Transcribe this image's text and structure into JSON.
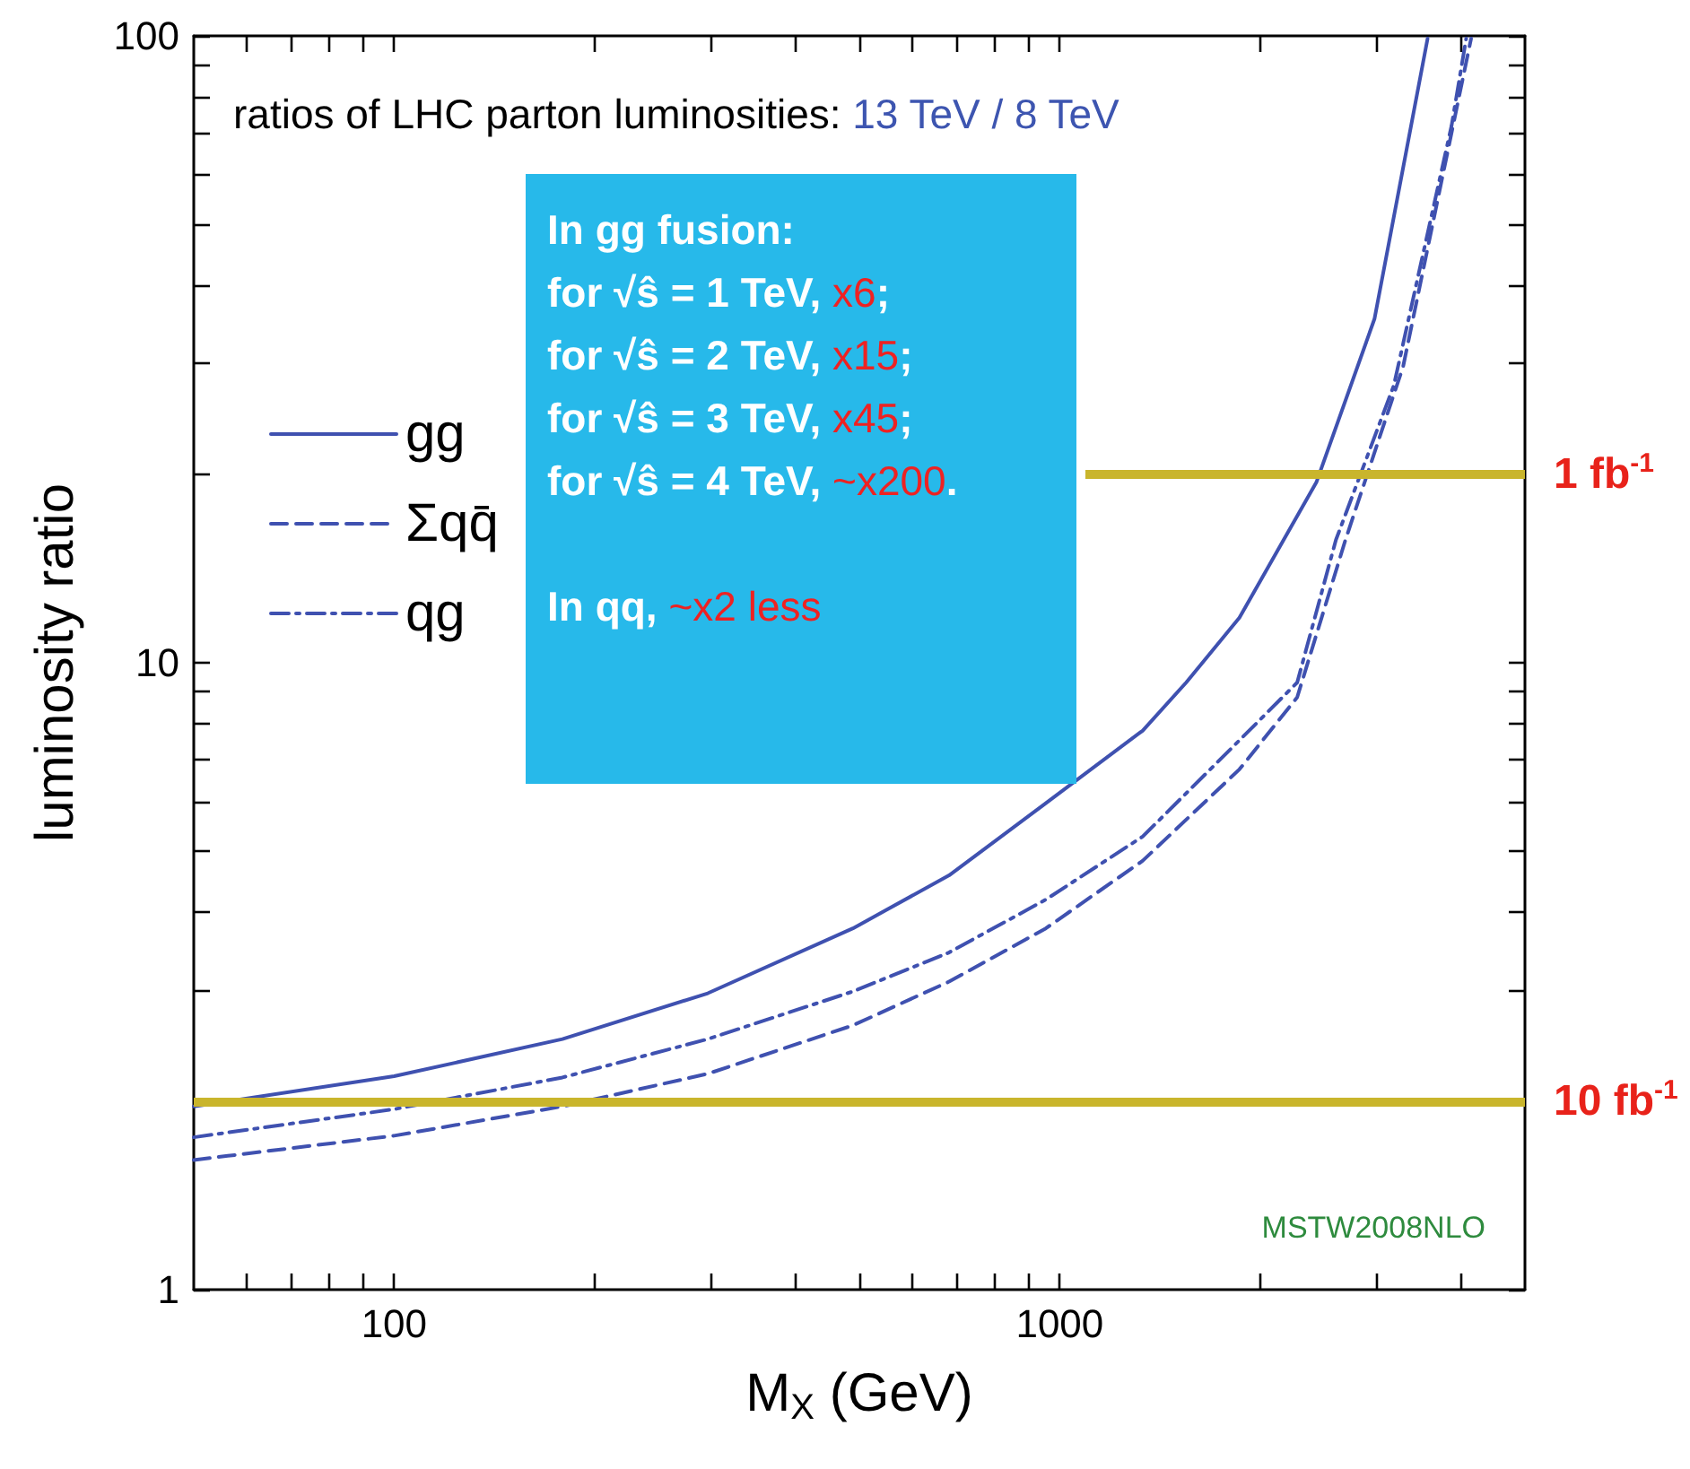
{
  "chart_data": {
    "type": "line",
    "title": "ratios of LHC parton luminosities: 13 TeV / 8 TeV",
    "xlabel": "M$_{X}$ (GeV)",
    "ylabel": "luminosity ratio",
    "log": "xy",
    "xlim": [
      50,
      5000
    ],
    "ylim": [
      1,
      100
    ],
    "xticks": [
      {
        "value": 60,
        "label": null
      },
      {
        "value": 70,
        "label": null
      },
      {
        "value": 80,
        "label": null
      },
      {
        "value": 90,
        "label": null
      },
      100,
      {
        "value": 200,
        "label": null
      },
      {
        "value": 300,
        "label": null
      },
      {
        "value": 400,
        "label": null
      },
      {
        "value": 500,
        "label": null
      },
      {
        "value": 600,
        "label": null
      },
      {
        "value": 700,
        "label": null
      },
      {
        "value": 800,
        "label": null
      },
      {
        "value": 900,
        "label": null
      },
      1000,
      {
        "value": 2000,
        "label": null
      },
      {
        "value": 3000,
        "label": null
      },
      {
        "value": 4000,
        "label": null
      }
    ],
    "yticks": [
      1,
      {
        "value": 2,
        "label": null
      },
      {
        "value": 3,
        "label": null
      },
      {
        "value": 4,
        "label": null
      },
      {
        "value": 5,
        "label": null
      },
      {
        "value": 6,
        "label": null
      },
      {
        "value": 7,
        "label": null
      },
      {
        "value": 8,
        "label": null
      },
      {
        "value": 9,
        "label": null
      },
      10,
      {
        "value": 20,
        "label": null
      },
      {
        "value": 30,
        "label": null
      },
      {
        "value": 40,
        "label": null
      },
      {
        "value": 50,
        "label": null
      },
      {
        "value": 60,
        "label": null
      },
      {
        "value": 70,
        "label": null
      },
      {
        "value": 80,
        "label": null
      },
      {
        "value": 90,
        "label": null
      },
      100
    ],
    "grid": false,
    "legend": "top left",
    "series": [
      {
        "name": "gg",
        "color": "#3f51b0",
        "line_style": "solid",
        "x": [
          50,
          100,
          179,
          296,
          489,
          682,
          953,
          1332,
          1549,
          1862,
          2430,
          2972,
          3570
        ],
        "values": [
          1.96,
          2.19,
          2.51,
          2.97,
          3.77,
          4.58,
          5.97,
          7.79,
          9.3,
          11.8,
          19.4,
          35.4,
          99
        ]
      },
      {
        "name": "Σqq̄",
        "color": "#3f51b0",
        "line_style": "dashed",
        "x": [
          50,
          100,
          179,
          296,
          489,
          682,
          953,
          1332,
          1862,
          2274,
          2687,
          3281,
          4150
        ],
        "values": [
          1.61,
          1.76,
          1.96,
          2.21,
          2.64,
          3.1,
          3.77,
          4.83,
          6.76,
          8.81,
          15.7,
          29.7,
          99
        ]
      },
      {
        "name": "qg",
        "color": "#3f51b0",
        "line_style": "dashdot",
        "x": [
          50,
          100,
          179,
          296,
          489,
          682,
          953,
          1332,
          1862,
          2274,
          2600,
          3177,
          3880,
          4080
        ],
        "values": [
          1.75,
          1.94,
          2.18,
          2.51,
          2.99,
          3.45,
          4.19,
          5.28,
          7.52,
          9.3,
          15.7,
          27.7,
          72,
          99
        ]
      }
    ],
    "ref_lines": [
      {
        "axis": "y",
        "value": 20,
        "label": "1 fb$^{-1}$",
        "color": "#c9b52c"
      },
      {
        "axis": "y",
        "value": 2,
        "label": "10 fb$^{-1}$",
        "color": "#c9b52c"
      }
    ],
    "annotations": [
      "In gg fusion:",
      "for √ŝ = 1 TeV, x6;",
      "for √ŝ = 2 TeV, x15;",
      "for √ŝ = 3 TeV, x45;",
      "for √ŝ = 4 TeV, ~x200.",
      "In qq, ~x2 less",
      "MSTW2008NLO"
    ]
  }
}
